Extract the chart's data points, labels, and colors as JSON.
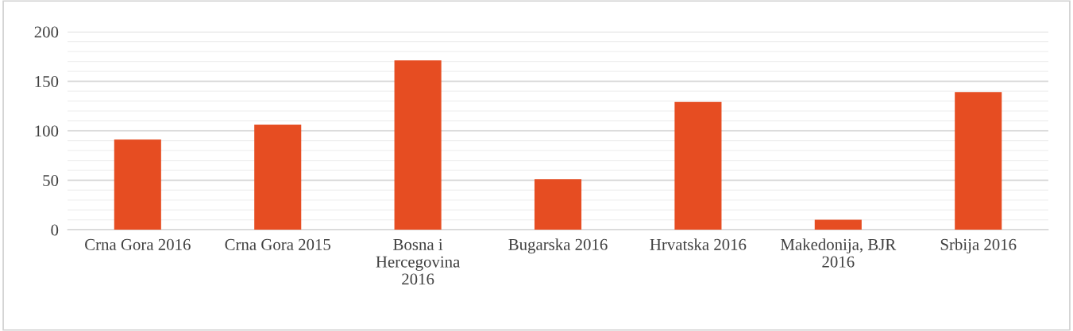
{
  "chart_data": {
    "type": "bar",
    "categories": [
      "Crna Gora 2016",
      "Crna Gora 2015",
      "Bosna i Hercegovina 2016",
      "Bugarska 2016",
      "Hrvatska 2016",
      "Makedonija, BJR 2016",
      "Srbija 2016"
    ],
    "values": [
      91,
      106,
      171,
      51,
      129,
      10,
      139
    ],
    "color": "#e64d22",
    "ylim": [
      0,
      200
    ],
    "yticks": [
      0,
      {
        "value": 10,
        "label": null
      },
      {
        "value": 20,
        "label": null
      },
      {
        "value": 30,
        "label": null
      },
      {
        "value": 40,
        "label": null
      },
      50,
      {
        "value": 60,
        "label": null
      },
      {
        "value": 70,
        "label": null
      },
      {
        "value": 80,
        "label": null
      },
      {
        "value": 90,
        "label": null
      },
      100,
      {
        "value": 110,
        "label": null
      },
      {
        "value": 120,
        "label": null
      },
      {
        "value": 130,
        "label": null
      },
      {
        "value": 140,
        "label": null
      },
      150,
      {
        "value": 160,
        "label": null
      },
      {
        "value": 170,
        "label": null
      },
      {
        "value": 180,
        "label": null
      },
      {
        "value": 190,
        "label": null
      },
      200
    ],
    "grid": "y"
  }
}
